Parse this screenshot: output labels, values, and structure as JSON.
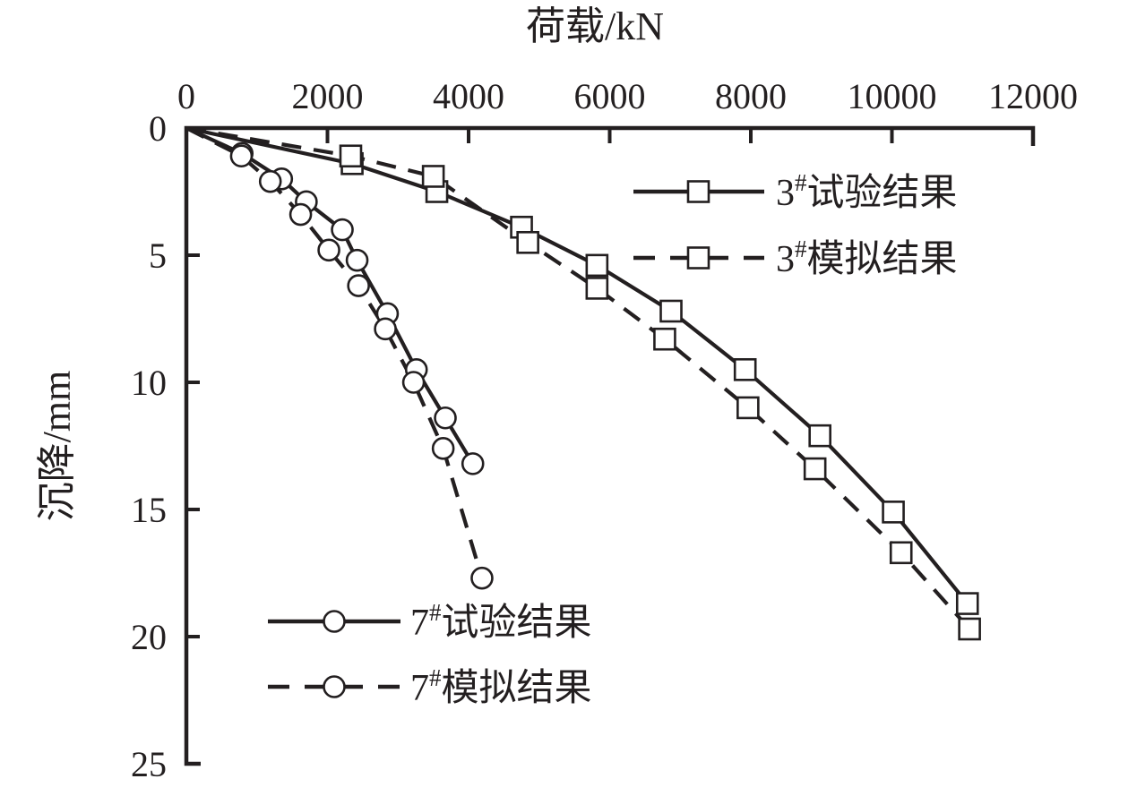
{
  "figure": {
    "x_axis_title": "荷载/kN",
    "y_axis_title": "沉降/mm"
  },
  "colors": {
    "line": "#231f20",
    "text": "#231f20",
    "background": "#ffffff",
    "marker_fill": "#ffffff"
  },
  "chart_data": {
    "type": "line",
    "title": "",
    "xlabel": "荷载/kN",
    "ylabel": "沉降/mm",
    "x_axis_position": "top",
    "y_axis_inverted": true,
    "grid": false,
    "xlim": [
      0,
      12000
    ],
    "ylim": [
      0,
      25
    ],
    "x_ticks": [
      0,
      2000,
      4000,
      6000,
      8000,
      10000,
      12000
    ],
    "y_ticks": [
      0,
      5,
      10,
      15,
      20,
      25
    ],
    "series": [
      {
        "name": "3#试验结果",
        "label_prefix": "3",
        "label_sup": "#",
        "label_rest": "试验结果",
        "line_style": "solid",
        "marker": "square",
        "x": [
          0,
          2350,
          3550,
          4750,
          5820,
          6870,
          7920,
          8980,
          10020,
          11070
        ],
        "y": [
          0,
          1.4,
          2.5,
          3.9,
          5.4,
          7.2,
          9.5,
          12.1,
          15.1,
          18.7
        ]
      },
      {
        "name": "3#模拟结果",
        "label_prefix": "3",
        "label_sup": "#",
        "label_rest": "模拟结果",
        "line_style": "dashed",
        "marker": "square",
        "x": [
          0,
          2330,
          3500,
          4840,
          5820,
          6780,
          7960,
          8910,
          10130,
          11100
        ],
        "y": [
          0,
          1.1,
          1.9,
          4.5,
          6.3,
          8.3,
          11.0,
          13.4,
          16.7,
          19.7
        ]
      },
      {
        "name": "7#试验结果",
        "label_prefix": "7",
        "label_sup": "#",
        "label_rest": "试验结果",
        "line_style": "solid",
        "marker": "circle",
        "x": [
          0,
          790,
          1350,
          1700,
          2210,
          2420,
          2850,
          3260,
          3670,
          4060
        ],
        "y": [
          0,
          1.0,
          2.0,
          2.9,
          4.0,
          5.2,
          7.3,
          9.5,
          11.4,
          13.2
        ]
      },
      {
        "name": "7#模拟结果",
        "label_prefix": "7",
        "label_sup": "#",
        "label_rest": "模拟结果",
        "line_style": "dashed",
        "marker": "circle",
        "x": [
          0,
          780,
          1190,
          1620,
          2020,
          2440,
          2820,
          3220,
          3640,
          4190
        ],
        "y": [
          0,
          1.1,
          2.1,
          3.4,
          4.8,
          6.2,
          7.9,
          10.0,
          12.6,
          17.7
        ]
      }
    ],
    "legend_position": [
      "top-right",
      "bottom-left"
    ]
  }
}
